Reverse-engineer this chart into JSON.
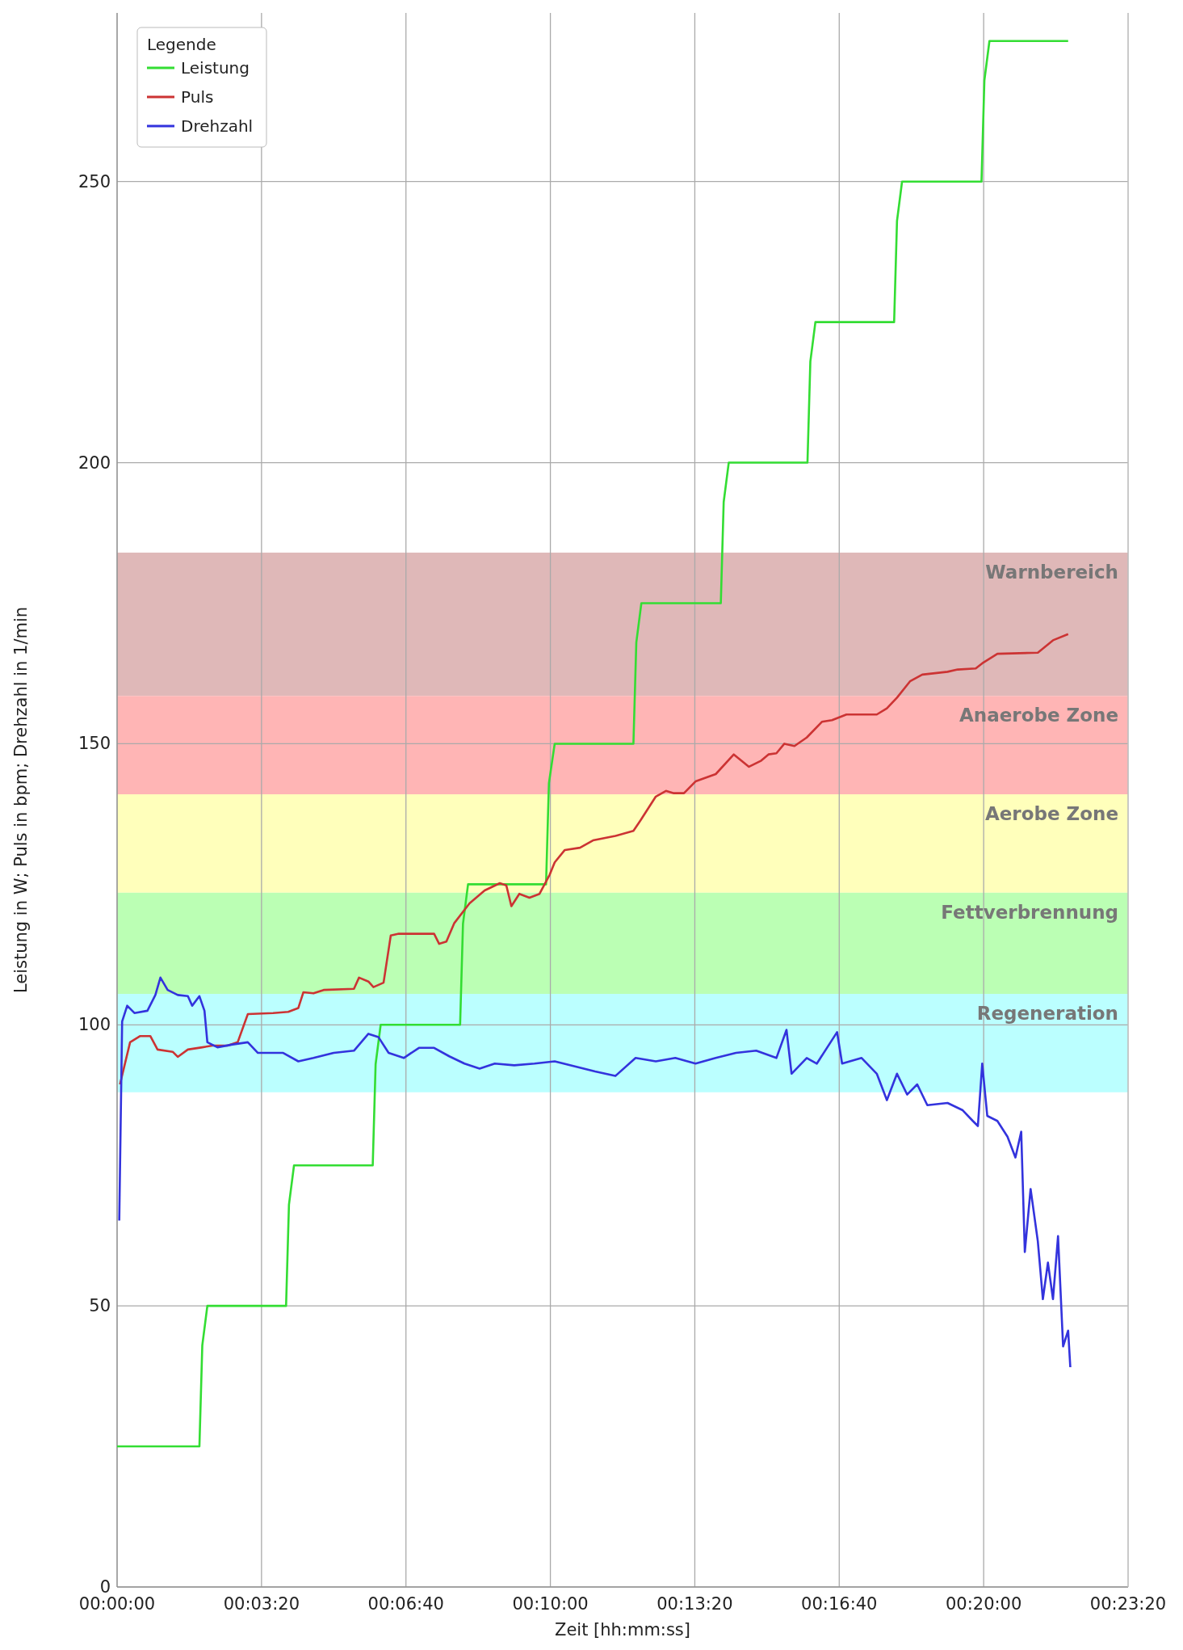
{
  "chart_data": {
    "type": "line",
    "xlabel": "Zeit [hh:mm:ss]",
    "ylabel": "Leistung in W; Puls in bpm; Drehzahl in 1/min",
    "legend_title": "Legende",
    "legend": "top left",
    "grid": true,
    "line_style": "solid",
    "xlim": [
      0,
      1400
    ],
    "ylim": [
      0,
      280
    ],
    "xticks": [
      {
        "value": 0,
        "label": "00:00:00"
      },
      {
        "value": 200,
        "label": "00:03:20"
      },
      {
        "value": 400,
        "label": "00:06:40"
      },
      {
        "value": 600,
        "label": "00:10:00"
      },
      {
        "value": 800,
        "label": "00:13:20"
      },
      {
        "value": 1000,
        "label": "00:16:40"
      },
      {
        "value": 1200,
        "label": "00:20:00"
      },
      {
        "value": 1400,
        "label": "00:23:20"
      }
    ],
    "yticks": [
      0,
      50,
      100,
      150,
      200,
      250
    ],
    "bands": [
      {
        "axis": "y",
        "from": 158.5,
        "to": 184,
        "label": "Warnbereich",
        "color": "#dfb8b8"
      },
      {
        "axis": "y",
        "from": 141,
        "to": 158.5,
        "label": "Anaerobe Zone",
        "color": "#ffb5b5"
      },
      {
        "axis": "y",
        "from": 123.5,
        "to": 141,
        "label": "Aerobe Zone",
        "color": "#ffffbb"
      },
      {
        "axis": "y",
        "from": 105.5,
        "to": 123.5,
        "label": "Fettverbrennung",
        "color": "#bbffb4"
      },
      {
        "axis": "y",
        "from": 88,
        "to": 105.5,
        "label": "Regeneration",
        "color": "#bbffff"
      }
    ],
    "series": [
      {
        "name": "Leistung",
        "color": "#33dd33",
        "x": [
          0,
          114,
          118,
          125,
          234,
          238,
          245,
          354,
          358,
          365,
          475,
          479,
          486,
          594,
          598,
          606,
          715,
          719,
          726,
          836,
          840,
          847,
          956,
          960,
          967,
          1076,
          1080,
          1087,
          1197,
          1201,
          1208,
          1317
        ],
        "values": [
          25,
          25,
          43,
          50,
          50,
          68,
          75,
          75,
          93,
          100,
          100,
          118,
          125,
          125,
          143,
          150,
          150,
          168,
          175,
          175,
          193,
          200,
          200,
          218,
          225,
          225,
          243,
          250,
          250,
          268,
          275,
          275
        ]
      },
      {
        "name": "Puls",
        "color": "#cc3333",
        "x": [
          4,
          18,
          32,
          46,
          56,
          77,
          84,
          98,
          118,
          132,
          153,
          167,
          181,
          216,
          237,
          251,
          258,
          272,
          286,
          328,
          335,
          348,
          355,
          369,
          379,
          390,
          439,
          446,
          456,
          467,
          488,
          509,
          530,
          539,
          546,
          557,
          571,
          585,
          599,
          606,
          620,
          641,
          659,
          690,
          715,
          725,
          746,
          760,
          771,
          785,
          801,
          829,
          854,
          875,
          892,
          902,
          913,
          924,
          938,
          955,
          976,
          990,
          1010,
          1052,
          1066,
          1080,
          1098,
          1115,
          1150,
          1164,
          1189,
          1198,
          1219,
          1275,
          1296,
          1317
        ],
        "values": [
          89.4,
          96.9,
          98,
          98,
          95.6,
          95.2,
          94.3,
          95.6,
          96,
          96.3,
          96.3,
          96.9,
          101.9,
          102.1,
          102.3,
          103,
          105.8,
          105.6,
          106.2,
          106.4,
          108.4,
          107.7,
          106.7,
          107.5,
          115.9,
          116.2,
          116.2,
          114.4,
          114.8,
          118.1,
          121.6,
          123.9,
          125.2,
          124.8,
          121.1,
          123.3,
          122.6,
          123.3,
          126.7,
          128.9,
          131.1,
          131.5,
          132.8,
          133.6,
          134.5,
          136.4,
          140.6,
          141.6,
          141.2,
          141.2,
          143.3,
          144.6,
          148.1,
          145.9,
          147,
          148.1,
          148.3,
          150,
          149.6,
          151.1,
          153.9,
          154.2,
          155.2,
          155.2,
          156.3,
          158.2,
          161.1,
          162.3,
          162.8,
          163.2,
          163.4,
          164.3,
          166,
          166.2,
          168.4,
          169.5
        ]
      },
      {
        "name": "Drehzahl",
        "color": "#3333dd",
        "x": [
          3,
          7,
          14,
          24,
          42,
          53,
          60,
          70,
          84,
          98,
          104,
          114,
          121,
          125,
          139,
          160,
          181,
          195,
          230,
          251,
          272,
          300,
          328,
          348,
          362,
          376,
          397,
          418,
          439,
          460,
          481,
          502,
          523,
          550,
          578,
          606,
          634,
          662,
          690,
          718,
          746,
          773,
          801,
          829,
          857,
          885,
          913,
          927,
          934,
          955,
          969,
          997,
          1004,
          1031,
          1052,
          1066,
          1080,
          1094,
          1108,
          1122,
          1150,
          1171,
          1185,
          1192,
          1198,
          1205,
          1219,
          1233,
          1244,
          1252,
          1257,
          1265,
          1275,
          1282,
          1289,
          1296,
          1303,
          1310,
          1317,
          1320
        ],
        "values": [
          65.2,
          100.6,
          103.4,
          102.1,
          102.5,
          105.3,
          108.4,
          106.2,
          105.3,
          105.1,
          103.4,
          105.1,
          102.5,
          96.9,
          96,
          96.5,
          96.9,
          95,
          95,
          93.5,
          94.1,
          95,
          95.4,
          98.4,
          97.8,
          95,
          94.1,
          95.9,
          95.9,
          94.4,
          93.1,
          92.2,
          93.1,
          92.8,
          93.1,
          93.5,
          92.6,
          91.7,
          90.9,
          94.1,
          93.5,
          94.1,
          93.1,
          94.1,
          95,
          95.4,
          94.1,
          99.1,
          91.3,
          94.1,
          93.1,
          98.7,
          93.1,
          94.1,
          91.3,
          86.6,
          91.3,
          87.6,
          89.4,
          85.7,
          86.1,
          84.8,
          82.9,
          82,
          93.1,
          83.8,
          82.9,
          80.1,
          76.4,
          81,
          59.6,
          70.8,
          61.5,
          51.2,
          57.7,
          51.2,
          62.4,
          42.8,
          45.6,
          39.1
        ]
      }
    ]
  }
}
